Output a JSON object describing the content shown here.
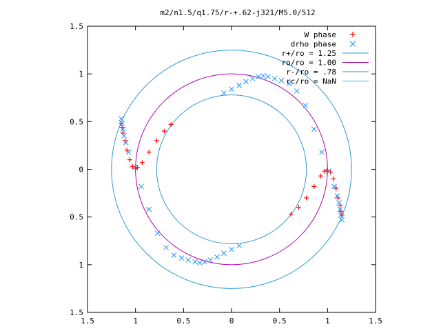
{
  "chart_data": {
    "type": "scatter",
    "title": "m2/n1.5/q1.75/r-+.62-j321/M5.0/512",
    "xlabel": "",
    "ylabel": "",
    "xlim": [
      -1.5,
      1.5
    ],
    "ylim": [
      -1.5,
      1.5
    ],
    "x_ticks": [
      -1.5,
      -1,
      -0.5,
      0,
      0.5,
      1,
      1.5
    ],
    "y_ticks": [
      -1.5,
      -1,
      -0.5,
      0,
      0.5,
      1,
      1.5
    ],
    "x_tick_labels": [
      "1.5",
      "1",
      "0.5",
      "0",
      "0.5",
      "1",
      "1.5"
    ],
    "y_tick_labels": [
      "1.5",
      "1",
      "0.5",
      "0",
      "0.5",
      "1",
      "1.5"
    ],
    "grid": false,
    "legend_position": "top-right",
    "legend": [
      {
        "label": "W phase",
        "kind": "plus",
        "color": "#ff0000"
      },
      {
        "label": "drho phase",
        "kind": "cross",
        "color": "#1e90ff"
      },
      {
        "label": "r+/ro = 1.25",
        "kind": "line",
        "color": "#2f9ad7"
      },
      {
        "label": "ro/ro = 1.00",
        "kind": "line",
        "color": "#b000b0"
      },
      {
        "label": "r-/ro = .78",
        "kind": "line",
        "color": "#2f9ad7"
      },
      {
        "label": "rc/ro = NaN",
        "kind": "line",
        "color": "#40b0e0"
      }
    ],
    "circles": [
      {
        "name": "r+/ro",
        "r": 1.25,
        "color": "#2f9ad7"
      },
      {
        "name": "ro/ro",
        "r": 1.0,
        "color": "#b000b0"
      },
      {
        "name": "r-/ro",
        "r": 0.78,
        "color": "#2f9ad7"
      }
    ],
    "series": [
      {
        "name": "W phase",
        "marker": "plus",
        "color": "#ff0000",
        "arms": [
          {
            "x": [
              0.62,
              0.7,
              0.78,
              0.86,
              0.93,
              0.97,
              1.0,
              1.03,
              1.06,
              1.09,
              1.11,
              1.13,
              1.14,
              1.15
            ],
            "y": [
              -0.47,
              -0.4,
              -0.3,
              -0.18,
              -0.07,
              -0.02,
              -0.01,
              -0.03,
              -0.1,
              -0.2,
              -0.3,
              -0.38,
              -0.44,
              -0.48
            ]
          },
          {
            "x": [
              -0.63,
              -0.7,
              -0.78,
              -0.86,
              -0.93,
              -0.98,
              -1.0,
              -1.03,
              -1.06,
              -1.09,
              -1.11,
              -1.13,
              -1.14,
              -1.15
            ],
            "y": [
              0.47,
              0.4,
              0.3,
              0.18,
              0.07,
              0.02,
              0.01,
              0.03,
              0.1,
              0.2,
              0.3,
              0.38,
              0.44,
              0.48
            ]
          }
        ]
      },
      {
        "name": "drho phase",
        "marker": "cross",
        "color": "#1e90ff",
        "arms": [
          {
            "x": [
              -0.08,
              0.0,
              0.08,
              0.15,
              0.22,
              0.28,
              0.33,
              0.38,
              0.45,
              0.52,
              0.6,
              0.68,
              0.77,
              0.86,
              0.94,
              1.01,
              1.07,
              1.1,
              1.12,
              1.13,
              1.14,
              1.15
            ],
            "y": [
              0.8,
              0.84,
              0.88,
              0.92,
              0.95,
              0.97,
              0.98,
              0.97,
              0.95,
              0.93,
              0.9,
              0.82,
              0.67,
              0.42,
              0.18,
              -0.02,
              -0.18,
              -0.28,
              -0.35,
              -0.42,
              -0.48,
              -0.53
            ]
          },
          {
            "x": [
              0.08,
              0.0,
              -0.08,
              -0.15,
              -0.22,
              -0.28,
              -0.33,
              -0.38,
              -0.45,
              -0.52,
              -0.6,
              -0.68,
              -0.77,
              -0.86,
              -0.94,
              -1.01,
              -1.07,
              -1.1,
              -1.12,
              -1.13,
              -1.14,
              -1.15
            ],
            "y": [
              -0.8,
              -0.84,
              -0.88,
              -0.92,
              -0.95,
              -0.97,
              -0.98,
              -0.97,
              -0.95,
              -0.93,
              -0.9,
              -0.82,
              -0.67,
              -0.42,
              -0.18,
              0.02,
              0.18,
              0.28,
              0.35,
              0.42,
              0.48,
              0.53
            ]
          }
        ]
      }
    ]
  }
}
